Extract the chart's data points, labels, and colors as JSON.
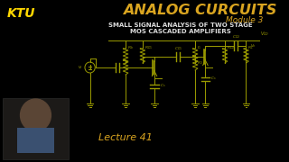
{
  "bg_color": "#000000",
  "title_text": "ANALOG CURCUITS",
  "title_color": "#DAA520",
  "title_fontsize": 11.5,
  "title_style": "italic",
  "title_weight": "bold",
  "module_text": "Module 3",
  "module_color": "#DAA520",
  "module_fontsize": 6.5,
  "module_style": "italic",
  "ktu_text": "KTU",
  "ktu_color": "#FFD700",
  "ktu_fontsize": 10,
  "ktu_style": "italic",
  "ktu_weight": "bold",
  "subtitle_line1": "SMALL SIGNAL ANALYSIS OF TWO STAGE",
  "subtitle_line2": "MOS CASCADED AMPLIFIERS",
  "subtitle_color": "#DDDDDD",
  "subtitle_fontsize": 5.0,
  "subtitle_weight": "bold",
  "lecture_text": "Lecture 41",
  "lecture_color": "#DAA520",
  "lecture_fontsize": 8.0,
  "lecture_style": "italic",
  "circuit_color": "#9B9B00",
  "vdd_text": "VDD",
  "vi_text": "vi",
  "vo_text": "vo"
}
